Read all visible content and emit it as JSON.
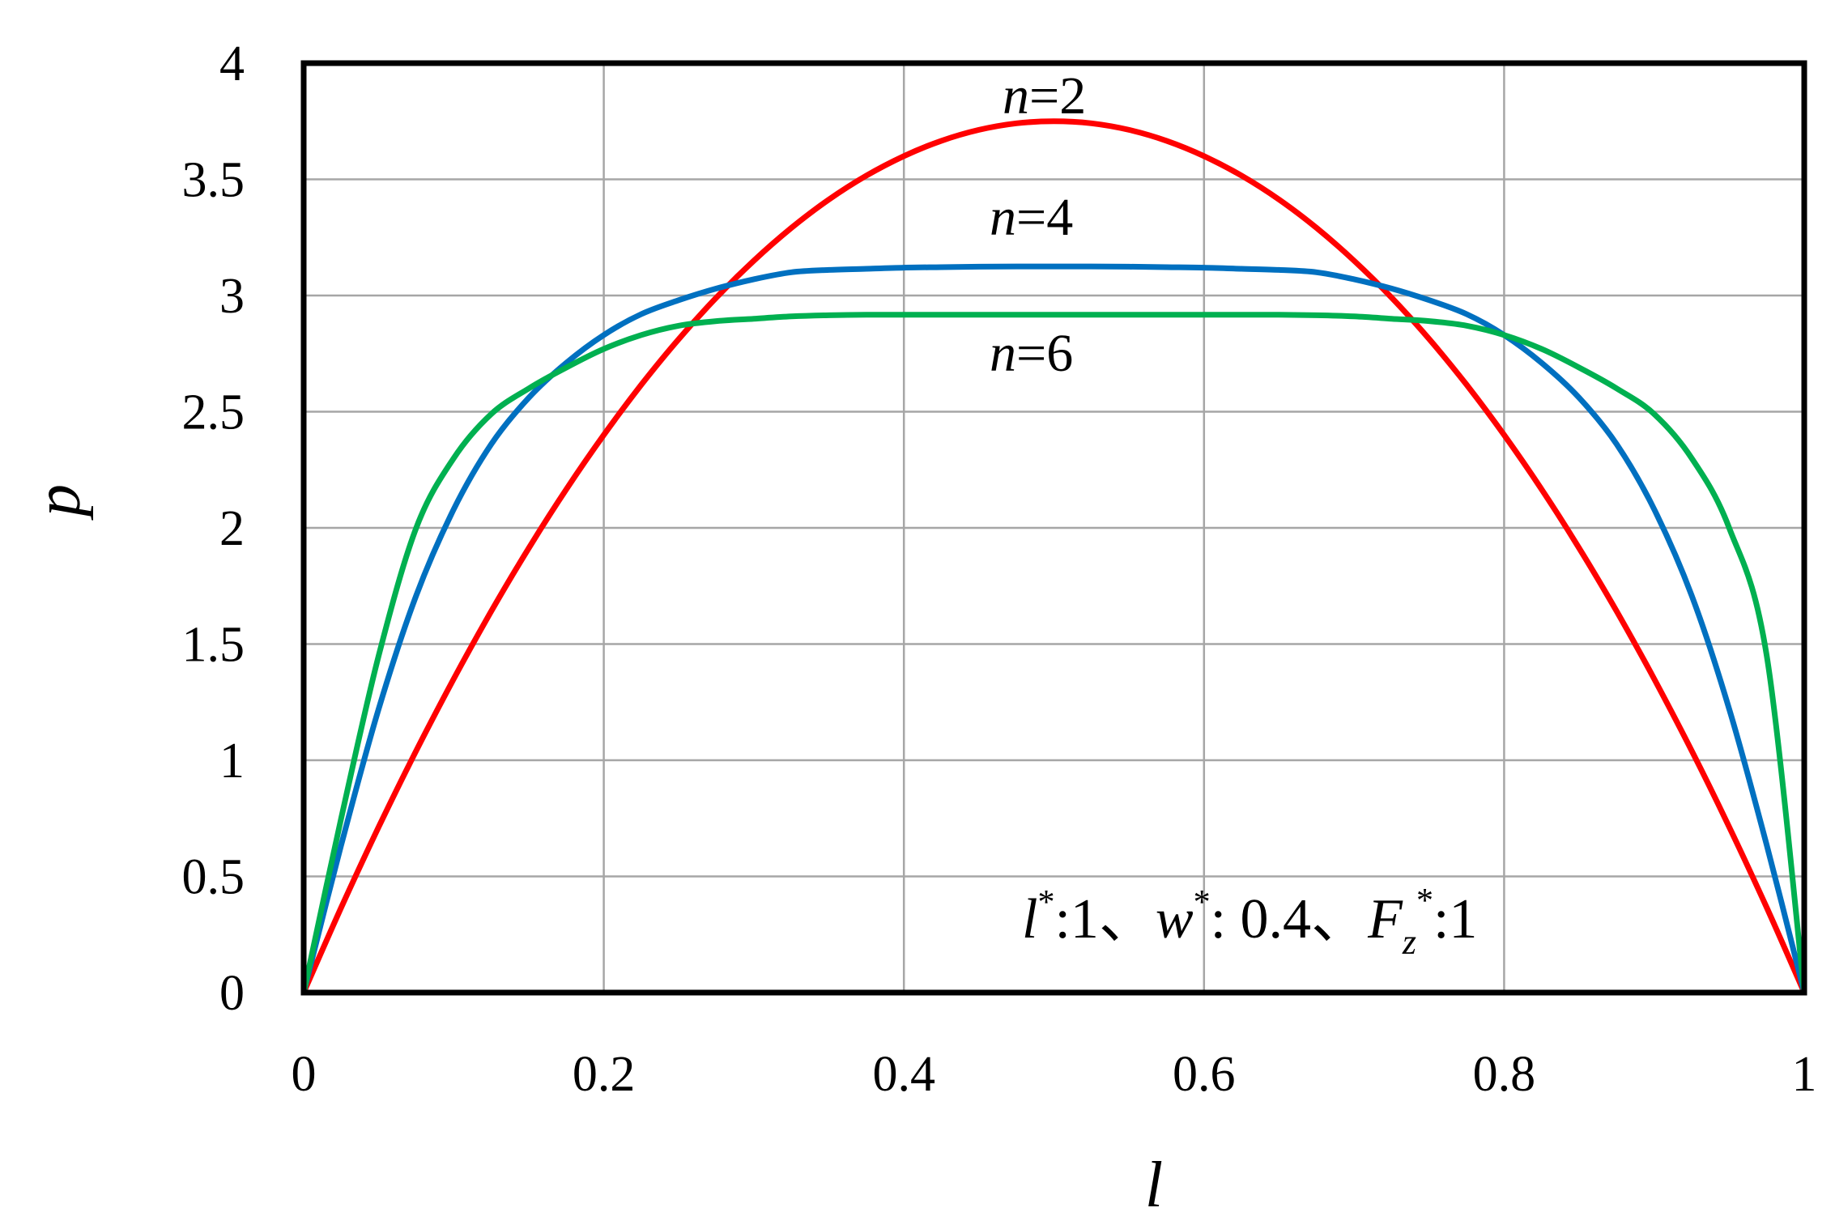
{
  "chart_data": {
    "type": "line",
    "xlabel": "l",
    "ylabel": "p",
    "xlim": [
      0,
      1
    ],
    "ylim": [
      0,
      4
    ],
    "x_ticks": [
      "0",
      "0.2",
      "0.4",
      "0.6",
      "0.8",
      "1"
    ],
    "y_ticks": [
      "0",
      "0.5",
      "1",
      "1.5",
      "2",
      "2.5",
      "3",
      "3.5",
      "4"
    ],
    "grid": true,
    "x": [
      0,
      0.025,
      0.05,
      0.075,
      0.1,
      0.125,
      0.15,
      0.175,
      0.2,
      0.225,
      0.25,
      0.275,
      0.3,
      0.325,
      0.35,
      0.375,
      0.4,
      0.425,
      0.45,
      0.475,
      0.5,
      0.525,
      0.55,
      0.575,
      0.6,
      0.625,
      0.65,
      0.675,
      0.7,
      0.725,
      0.75,
      0.775,
      0.8,
      0.825,
      0.85,
      0.875,
      0.9,
      0.925,
      0.95,
      0.975,
      1
    ],
    "series": [
      {
        "name": "n=2",
        "color": "#ff0000",
        "values": [
          0,
          0.366,
          0.713,
          1.041,
          1.35,
          1.641,
          1.913,
          2.166,
          2.4,
          2.616,
          2.813,
          2.991,
          3.15,
          3.291,
          3.413,
          3.516,
          3.6,
          3.666,
          3.713,
          3.741,
          3.75,
          3.741,
          3.713,
          3.666,
          3.6,
          3.516,
          3.413,
          3.291,
          3.15,
          2.991,
          2.813,
          2.616,
          2.4,
          2.166,
          1.913,
          1.641,
          1.35,
          1.041,
          0.713,
          0.366,
          0
        ]
      },
      {
        "name": "n=4",
        "color": "#0070c0",
        "values": [
          0,
          0.635,
          1.221,
          1.709,
          2.08,
          2.36,
          2.56,
          2.71,
          2.83,
          2.92,
          2.98,
          3.03,
          3.07,
          3.1,
          3.11,
          3.115,
          3.12,
          3.122,
          3.124,
          3.125,
          3.125,
          3.125,
          3.124,
          3.122,
          3.12,
          3.115,
          3.11,
          3.1,
          3.07,
          3.03,
          2.98,
          2.92,
          2.83,
          2.71,
          2.56,
          2.36,
          2.08,
          1.709,
          1.221,
          0.635,
          0
        ]
      },
      {
        "name": "n=6",
        "color": "#00b050",
        "values": [
          0,
          0.75,
          1.45,
          2.0,
          2.3,
          2.49,
          2.6,
          2.69,
          2.77,
          2.83,
          2.87,
          2.89,
          2.9,
          2.91,
          2.915,
          2.917,
          2.917,
          2.917,
          2.917,
          2.917,
          2.917,
          2.917,
          2.917,
          2.917,
          2.917,
          2.917,
          2.917,
          2.915,
          2.91,
          2.9,
          2.89,
          2.87,
          2.83,
          2.77,
          2.69,
          2.6,
          2.49,
          2.3,
          2.0,
          1.45,
          0
        ]
      }
    ],
    "curve_labels": [
      {
        "italic": "n",
        "rest": "=2"
      },
      {
        "italic": "n",
        "rest": "=4"
      },
      {
        "italic": "n",
        "rest": "=6"
      }
    ],
    "annotation": {
      "l_sym": "l",
      "l_sup": "*",
      "l_val": ":1、",
      "w_sym": "w",
      "w_sup": "*",
      "w_val": ": 0.4、",
      "f_sym": "F",
      "f_sub": "z",
      "f_sup": "*",
      "f_val": ":1"
    },
    "colors": {
      "grid": "#a6a6a6",
      "frame": "#000000"
    }
  }
}
